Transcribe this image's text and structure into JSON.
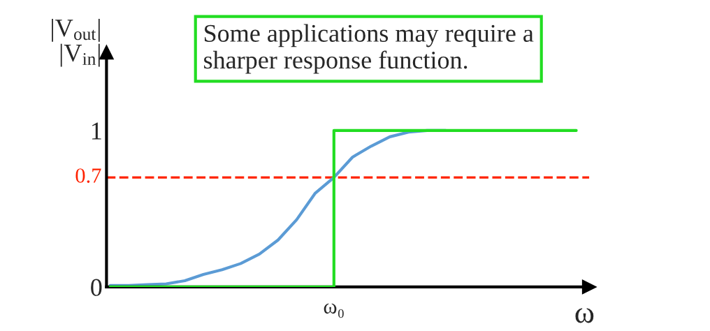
{
  "chart_data": {
    "type": "line",
    "categories": [
      null,
      null,
      null,
      null,
      null,
      null,
      null,
      null,
      null,
      null,
      null,
      null,
      "ω₀",
      null,
      null,
      null,
      null,
      null,
      null,
      null,
      null,
      null,
      null,
      null,
      null,
      null
    ],
    "series": [
      {
        "color": "#5b9bd5",
        "values": [
          0.01,
          0.01,
          0.015,
          0.02,
          0.04,
          0.08,
          0.11,
          0.15,
          0.21,
          0.3,
          0.43,
          0.6,
          0.7,
          0.83,
          0.9,
          0.96,
          0.99,
          1,
          1,
          null,
          null,
          null,
          null,
          null,
          null,
          null
        ]
      },
      {
        "type": "step",
        "color": "#22dd22",
        "values": [
          0,
          0,
          0,
          0,
          0,
          0,
          0,
          0,
          0,
          0,
          0,
          0,
          1,
          1,
          1,
          1,
          1,
          1,
          1,
          1,
          1,
          1,
          1,
          1,
          1,
          1
        ]
      }
    ],
    "ylim": [
      0,
      1.5
    ],
    "yticks": [
      0,
      1
    ],
    "ref_lines": [
      {
        "axis": "y",
        "value": 0.7,
        "label": "0.7",
        "color": "#ff2200",
        "line_style": "dashed"
      }
    ],
    "ylabel": "|V$_{out}$|\n|V$_{in}$|",
    "xlabel": "ω",
    "annotations": [
      "Some applications may require a\nsharper response function."
    ],
    "grid": false,
    "legend": false
  }
}
